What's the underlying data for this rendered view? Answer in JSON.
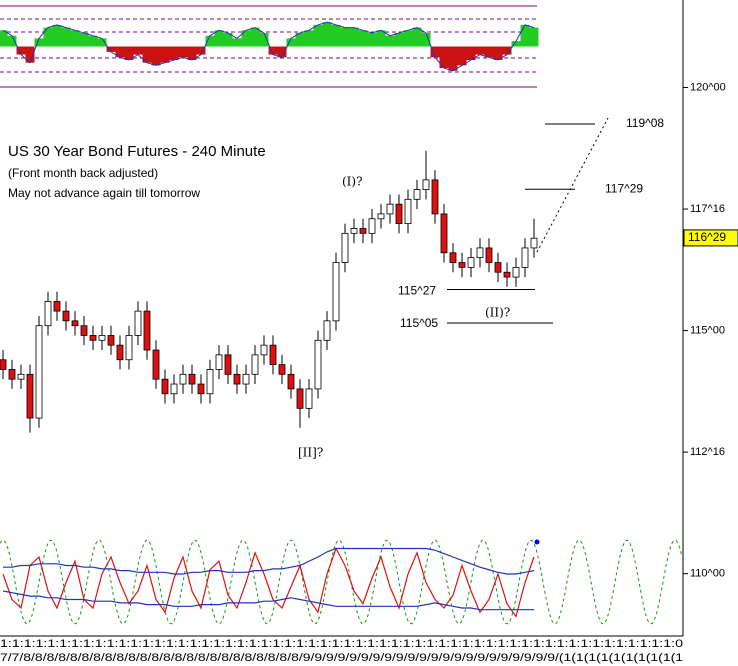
{
  "chart_data": {
    "type": "candlestick",
    "title": "US 30 Year Bond Futures - 240 Minute",
    "subtitle": "(Front month back adjusted)",
    "note": "May not advance again till tomorrow",
    "ylim": [
      108.1,
      121.8
    ],
    "yticks": [
      {
        "value": 120,
        "label": "120^00"
      },
      {
        "value": 117.5,
        "label": "117^16"
      },
      {
        "value": 115,
        "label": "115^00"
      },
      {
        "value": 112.5,
        "label": "112^16"
      },
      {
        "value": 110,
        "label": "110^00"
      }
    ],
    "last_price": {
      "value": 116.906,
      "label": "116^29"
    },
    "levels": [
      {
        "value": 119.25,
        "label": "119^08"
      },
      {
        "value": 117.906,
        "label": "117^29"
      },
      {
        "value": 115.844,
        "label": "115^27"
      },
      {
        "value": 115.156,
        "label": "115^05"
      }
    ],
    "wave_labels": [
      "(I)?",
      "[II]?",
      "(II)?"
    ],
    "x_axis_row1": "1:1:1:1:1:1:1:1:1:1:1:1:1:1:1:1:1:1:1:1:1:1:1:1:1:1:1:1:1:1:1:1:1:1:1:1:1:1:1:1:1:1:1:1:1:1:1:1:1:1:1:1:1:1:1:1:1:0",
    "x_axis_row2": "7/7/8/8/8/8/8/8/8/8/8/8/8/8/8/8/8/8/8/8/8/8/8/8/8/8/9/9/9/9/9/9/9/9/9/9/9/9/9/9/9/9/9/9/9/9/9/9/(1(1(1(1(1(1(1(1(1(1",
    "up_color": "#ffffff",
    "down_color": "#e01010",
    "open": [
      114.4,
      114.2,
      114.0,
      114.1,
      113.2,
      115.1,
      115.6,
      115.4,
      115.2,
      115.1,
      114.9,
      114.8,
      114.9,
      114.7,
      114.4,
      114.9,
      115.4,
      114.6,
      114.0,
      113.7,
      113.9,
      114.1,
      113.9,
      113.7,
      114.2,
      114.5,
      114.1,
      113.9,
      114.1,
      114.5,
      114.7,
      114.3,
      114.1,
      113.8,
      113.4,
      113.8,
      114.8,
      115.2,
      116.4,
      117.0,
      117.1,
      117.0,
      117.3,
      117.4,
      117.6,
      117.2,
      117.7,
      117.9,
      118.1,
      117.4,
      116.6,
      116.4,
      116.3,
      116.5,
      116.7,
      116.4,
      116.2,
      116.1,
      116.3,
      116.7
    ],
    "high": [
      114.6,
      114.4,
      114.3,
      114.3,
      115.3,
      115.8,
      115.8,
      115.6,
      115.4,
      115.3,
      115.1,
      115.1,
      115.1,
      114.9,
      115.1,
      115.6,
      115.6,
      114.8,
      114.2,
      114.1,
      114.3,
      114.3,
      114.1,
      114.4,
      114.7,
      114.7,
      114.3,
      114.3,
      114.7,
      114.9,
      114.9,
      114.5,
      114.3,
      114.0,
      114.0,
      115.0,
      115.4,
      116.6,
      117.2,
      117.3,
      117.3,
      117.5,
      117.6,
      117.8,
      117.8,
      117.9,
      118.1,
      118.7,
      118.3,
      117.6,
      116.8,
      116.6,
      116.7,
      116.9,
      116.9,
      116.6,
      116.4,
      116.5,
      116.9,
      117.3
    ],
    "low": [
      114.0,
      113.8,
      113.8,
      112.9,
      113.0,
      114.9,
      115.2,
      115.0,
      114.9,
      114.7,
      114.6,
      114.6,
      114.5,
      114.2,
      114.2,
      114.7,
      114.4,
      113.8,
      113.5,
      113.5,
      113.7,
      113.7,
      113.5,
      113.5,
      114.0,
      113.9,
      113.7,
      113.7,
      113.9,
      114.3,
      114.1,
      113.9,
      113.6,
      113.0,
      113.2,
      113.6,
      114.6,
      115.0,
      116.2,
      116.8,
      116.8,
      116.8,
      117.1,
      117.2,
      117.0,
      117.0,
      117.5,
      117.7,
      117.2,
      116.4,
      116.2,
      116.1,
      116.1,
      116.3,
      116.2,
      116.0,
      115.9,
      115.9,
      116.1,
      116.5
    ],
    "close": [
      114.2,
      114.0,
      114.1,
      113.2,
      115.1,
      115.6,
      115.4,
      115.2,
      115.1,
      114.9,
      114.8,
      114.9,
      114.7,
      114.4,
      114.9,
      115.4,
      114.6,
      114.0,
      113.7,
      113.9,
      114.1,
      113.9,
      113.7,
      114.2,
      114.5,
      114.1,
      113.9,
      114.1,
      114.5,
      114.7,
      114.3,
      114.1,
      113.8,
      113.4,
      113.8,
      114.8,
      115.2,
      116.4,
      117.0,
      117.1,
      117.0,
      117.3,
      117.4,
      117.6,
      117.2,
      117.7,
      117.9,
      118.1,
      117.4,
      116.6,
      116.4,
      116.3,
      116.5,
      116.7,
      116.4,
      116.2,
      116.1,
      116.3,
      116.7,
      116.9
    ],
    "histogram": {
      "pos_color": "#22cc22",
      "neg_color": "#cc1111",
      "ylim": [
        -1.5,
        1.5
      ],
      "values": [
        0.6,
        0.4,
        -0.3,
        -0.6,
        0.3,
        0.7,
        0.8,
        0.7,
        0.6,
        0.5,
        0.4,
        0.3,
        -0.2,
        -0.4,
        -0.5,
        -0.3,
        -0.6,
        -0.7,
        -0.6,
        -0.5,
        -0.4,
        -0.5,
        -0.3,
        0.4,
        0.6,
        0.5,
        0.3,
        0.6,
        0.7,
        0.5,
        -0.3,
        -0.4,
        0.3,
        0.5,
        0.6,
        0.8,
        0.9,
        0.8,
        0.7,
        0.7,
        0.6,
        0.5,
        0.6,
        0.4,
        0.5,
        0.6,
        0.7,
        0.5,
        -0.4,
        -0.8,
        -0.9,
        -0.7,
        -0.5,
        -0.3,
        -0.4,
        -0.5,
        -0.3,
        0.2,
        0.8,
        0.7
      ]
    },
    "oscillator": {
      "ylim": [
        0,
        100
      ],
      "series": [
        {
          "color": "#dd1111",
          "values": [
            60,
            30,
            20,
            70,
            80,
            40,
            20,
            50,
            75,
            30,
            20,
            60,
            80,
            50,
            25,
            40,
            70,
            30,
            15,
            55,
            80,
            40,
            20,
            65,
            75,
            35,
            20,
            50,
            85,
            60,
            30,
            20,
            45,
            70,
            30,
            15,
            60,
            90,
            70,
            40,
            25,
            55,
            80,
            45,
            20,
            60,
            85,
            50,
            30,
            20,
            35,
            70,
            40,
            15,
            30,
            60,
            25,
            10,
            50,
            80
          ]
        },
        {
          "color": "#2233bb",
          "values": [
            68,
            68,
            70,
            70,
            72,
            72,
            72,
            70,
            70,
            68,
            68,
            66,
            66,
            64,
            64,
            62,
            62,
            62,
            62,
            60,
            60,
            62,
            62,
            64,
            64,
            62,
            62,
            62,
            64,
            64,
            66,
            66,
            68,
            70,
            75,
            80,
            86,
            90,
            90,
            90,
            90,
            90,
            90,
            90,
            90,
            90,
            90,
            90,
            88,
            84,
            80,
            76,
            72,
            68,
            65,
            62,
            60,
            60,
            62,
            64
          ]
        },
        {
          "color": "#2233bb",
          "values": [
            40,
            38,
            36,
            34,
            34,
            32,
            32,
            30,
            30,
            30,
            28,
            28,
            28,
            26,
            26,
            26,
            24,
            24,
            24,
            22,
            22,
            22,
            24,
            24,
            24,
            26,
            26,
            26,
            26,
            28,
            28,
            30,
            32,
            30,
            28,
            26,
            24,
            22,
            22,
            22,
            22,
            22,
            22,
            22,
            22,
            22,
            22,
            24,
            26,
            24,
            22,
            20,
            20,
            18,
            18,
            18,
            18,
            18,
            18,
            18
          ]
        }
      ]
    }
  }
}
